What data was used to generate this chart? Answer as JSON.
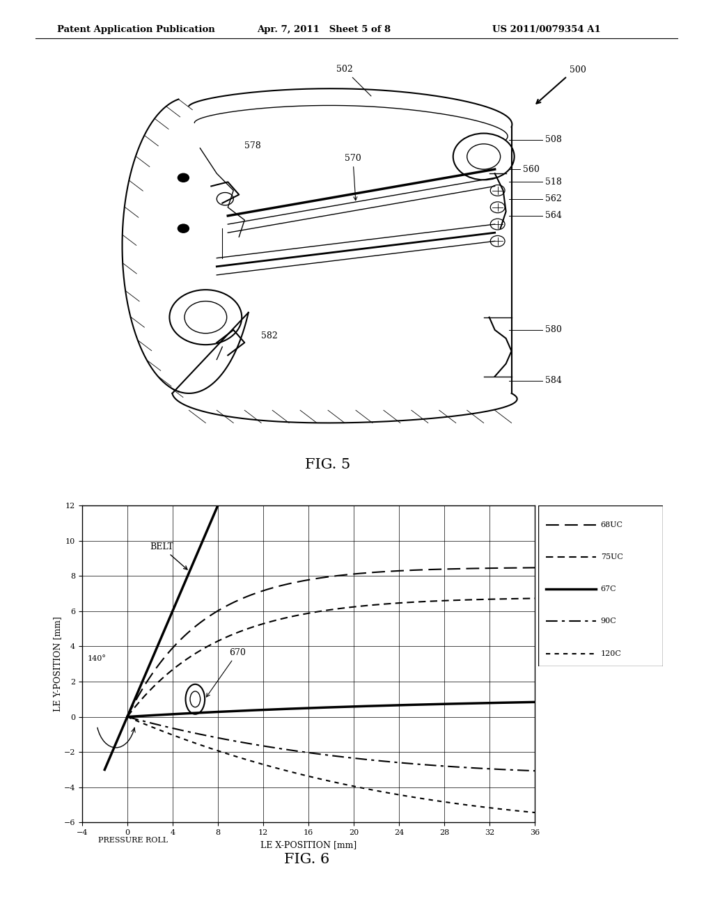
{
  "header_left": "Patent Application Publication",
  "header_center": "Apr. 7, 2011   Sheet 5 of 8",
  "header_right": "US 2011/0079354 A1",
  "fig5_label": "FIG. 5",
  "fig6_label": "FIG. 6",
  "bg_color": "#ffffff",
  "xlabel": "LE X-POSITION [mm]",
  "ylabel": "LE Y-POSITION [mm]",
  "pressure_roll_label": "PRESSURE ROLL",
  "xlim": [
    -4,
    36
  ],
  "ylim": [
    -6,
    12
  ],
  "xticks": [
    -4,
    0,
    4,
    8,
    12,
    16,
    20,
    24,
    28,
    32,
    36
  ],
  "yticks": [
    -6,
    -4,
    -2,
    0,
    2,
    4,
    6,
    8,
    10,
    12
  ],
  "belt_label": "BELT",
  "angle_label": "140°",
  "circle_label": "670",
  "legend_entries": [
    "68UC",
    "75UC",
    "67C",
    "90C",
    "120C"
  ]
}
